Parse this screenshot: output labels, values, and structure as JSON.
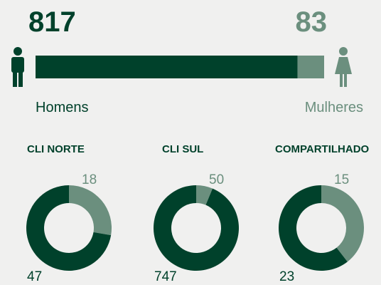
{
  "chart_data": [
    {
      "type": "bar",
      "categories": [
        "Homens",
        "Mulheres"
      ],
      "values": [
        817,
        83
      ],
      "colors": [
        "#00412b",
        "#6b8f7e"
      ]
    },
    {
      "type": "pie",
      "title": "CLI NORTE",
      "values": [
        18,
        47
      ],
      "colors": [
        "#6b8f7e",
        "#00412b"
      ]
    },
    {
      "type": "pie",
      "title": "CLI SUL",
      "values": [
        50,
        747
      ],
      "colors": [
        "#6b8f7e",
        "#00412b"
      ]
    },
    {
      "type": "pie",
      "title": "COMPARTILHADO",
      "values": [
        15,
        23
      ],
      "colors": [
        "#6b8f7e",
        "#00412b"
      ]
    }
  ]
}
